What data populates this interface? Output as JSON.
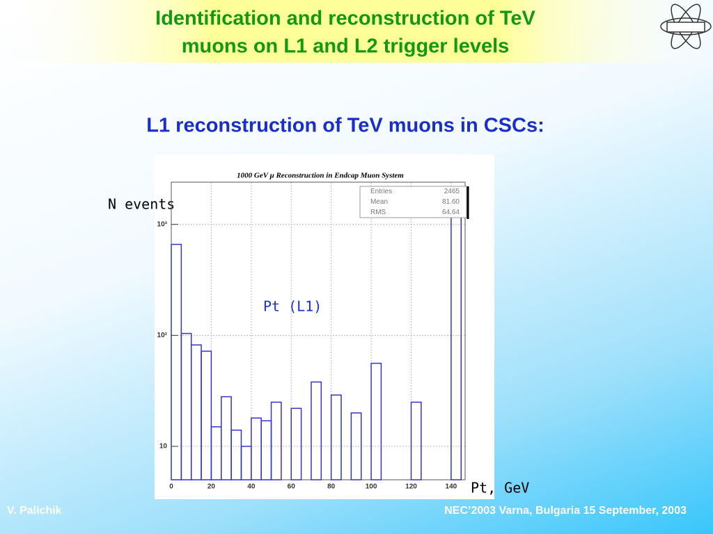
{
  "header": {
    "title_lines": [
      "Identification and reconstruction of TeV",
      "muons on L1 and L2 trigger levels"
    ],
    "subtitle": "L1 reconstruction of TeV muons in CSCs:"
  },
  "footer": {
    "author": "V. Palichik",
    "event": "NEC’2003 Varna, Bulgaria  15 September, 2003"
  },
  "chart_data": {
    "type": "histogram",
    "title": "1000 GeV μ  Reconstruction in Endcap Muon System",
    "y_label": "N events",
    "x_label": "Pt, GeV",
    "annotation": "Pt (L1)",
    "bins": [
      0,
      5,
      10,
      15,
      20,
      25,
      30,
      35,
      40,
      45,
      50,
      55,
      60,
      65,
      70,
      75,
      80,
      85,
      90,
      95,
      100,
      105,
      110,
      115,
      120,
      125,
      130,
      135,
      140,
      145
    ],
    "values": [
      660,
      104,
      82,
      72,
      15,
      28,
      14,
      10,
      18,
      17,
      25,
      0,
      22,
      0,
      38,
      0,
      29,
      0,
      20,
      0,
      56,
      0,
      0,
      0,
      25,
      0,
      0,
      0,
      1205
    ],
    "color": "#3333cc",
    "xlim": [
      0,
      147
    ],
    "xticks": [
      0,
      20,
      40,
      60,
      80,
      100,
      120,
      140
    ],
    "ylim": [
      5,
      2400
    ],
    "log_y": true,
    "yticks": [
      10,
      {
        "value": 100,
        "label": "10²"
      },
      {
        "value": 1000,
        "label": "10³"
      }
    ],
    "grid": true,
    "stats": [
      {
        "label": "Entries",
        "value": "2465"
      },
      {
        "label": "Mean",
        "value": "81.60"
      },
      {
        "label": "RMS",
        "value": "64.64"
      }
    ]
  }
}
